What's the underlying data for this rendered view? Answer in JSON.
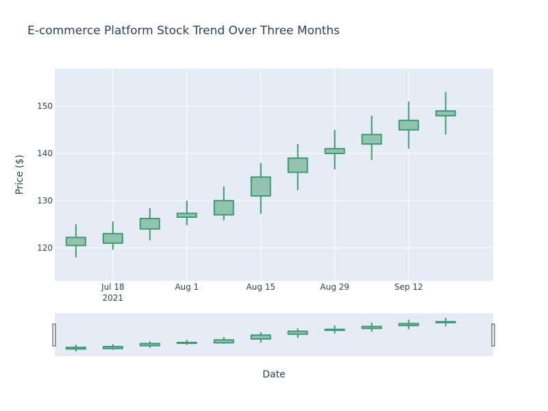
{
  "chart_data": {
    "type": "candlestick",
    "title": "E-commerce Platform Stock Trend Over Three Months",
    "xlabel": "Date",
    "ylabel": "Price ($)",
    "x_tick_labels": [
      "Jul 18",
      "Aug 1",
      "Aug 15",
      "Aug 29",
      "Sep 12"
    ],
    "x_tick_year": "2021",
    "y_ticks": [
      120,
      130,
      140,
      150
    ],
    "ylim": [
      113,
      158
    ],
    "xlim": [
      "2021-07-07",
      "2021-09-28"
    ],
    "range_slider": true,
    "grid": true,
    "colors": {
      "plot_bg": "#e5ecf6",
      "increasing_line": "#3d9970",
      "increasing_fill": "#93c4b0",
      "grid": "#ffffff",
      "text": "#2a3f5f"
    },
    "candles": [
      {
        "date": "2021-07-11",
        "open": 120.5,
        "high": 125.0,
        "low": 118.0,
        "close": 122.2
      },
      {
        "date": "2021-07-18",
        "open": 121.0,
        "high": 125.6,
        "low": 119.6,
        "close": 123.0
      },
      {
        "date": "2021-07-25",
        "open": 124.0,
        "high": 128.4,
        "low": 121.6,
        "close": 126.2
      },
      {
        "date": "2021-08-01",
        "open": 126.5,
        "high": 130.0,
        "low": 124.8,
        "close": 127.3
      },
      {
        "date": "2021-08-08",
        "open": 127.0,
        "high": 133.0,
        "low": 125.8,
        "close": 130.0
      },
      {
        "date": "2021-08-15",
        "open": 131.0,
        "high": 138.0,
        "low": 127.2,
        "close": 135.0
      },
      {
        "date": "2021-08-22",
        "open": 136.0,
        "high": 142.0,
        "low": 132.2,
        "close": 139.0
      },
      {
        "date": "2021-08-29",
        "open": 140.0,
        "high": 145.0,
        "low": 136.6,
        "close": 141.0
      },
      {
        "date": "2021-09-05",
        "open": 142.0,
        "high": 148.0,
        "low": 138.6,
        "close": 144.0
      },
      {
        "date": "2021-09-12",
        "open": 145.0,
        "high": 151.0,
        "low": 141.0,
        "close": 147.0
      },
      {
        "date": "2021-09-19",
        "open": 148.0,
        "high": 153.0,
        "low": 144.0,
        "close": 149.0
      }
    ]
  }
}
